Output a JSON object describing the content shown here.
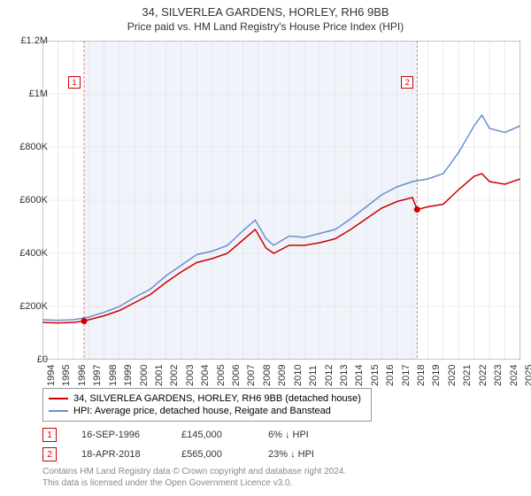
{
  "title": "34, SILVERLEA GARDENS, HORLEY, RH6 9BB",
  "subtitle": "Price paid vs. HM Land Registry's House Price Index (HPI)",
  "chart": {
    "type": "line",
    "background_color": "#ffffff",
    "plot_band_color": "#f0f4fa",
    "grid_color": "#dddddd",
    "axis_color": "#888888",
    "ylim": [
      0,
      1200000
    ],
    "ytick_step": 200000,
    "yticks": [
      "£0",
      "£200K",
      "£400K",
      "£600K",
      "£800K",
      "£1M",
      "£1.2M"
    ],
    "xlim": [
      1994,
      2025
    ],
    "xticks": [
      1994,
      1995,
      1996,
      1997,
      1998,
      1999,
      2000,
      2001,
      2002,
      2003,
      2004,
      2005,
      2006,
      2007,
      2008,
      2009,
      2010,
      2011,
      2012,
      2013,
      2014,
      2015,
      2016,
      2017,
      2018,
      2019,
      2020,
      2021,
      2022,
      2023,
      2024,
      2025
    ],
    "plot_band_start": 1996.7,
    "plot_band_end": 2018.3,
    "series": [
      {
        "name": "34, SILVERLEA GARDENS, HORLEY, RH6 9BB (detached house)",
        "color": "#cc0000",
        "line_width": 1.5,
        "data": [
          [
            1994,
            140000
          ],
          [
            1995,
            138000
          ],
          [
            1996,
            140000
          ],
          [
            1996.7,
            145000
          ],
          [
            1997,
            150000
          ],
          [
            1998,
            165000
          ],
          [
            1999,
            185000
          ],
          [
            2000,
            215000
          ],
          [
            2001,
            245000
          ],
          [
            2002,
            290000
          ],
          [
            2003,
            330000
          ],
          [
            2004,
            365000
          ],
          [
            2005,
            380000
          ],
          [
            2006,
            400000
          ],
          [
            2007,
            450000
          ],
          [
            2007.8,
            490000
          ],
          [
            2008.5,
            420000
          ],
          [
            2009,
            400000
          ],
          [
            2010,
            430000
          ],
          [
            2011,
            430000
          ],
          [
            2012,
            440000
          ],
          [
            2013,
            455000
          ],
          [
            2014,
            490000
          ],
          [
            2015,
            530000
          ],
          [
            2016,
            570000
          ],
          [
            2017,
            595000
          ],
          [
            2018,
            610000
          ],
          [
            2018.3,
            565000
          ],
          [
            2019,
            575000
          ],
          [
            2020,
            585000
          ],
          [
            2021,
            640000
          ],
          [
            2022,
            690000
          ],
          [
            2022.5,
            700000
          ],
          [
            2023,
            670000
          ],
          [
            2024,
            660000
          ],
          [
            2025,
            680000
          ]
        ]
      },
      {
        "name": "HPI: Average price, detached house, Reigate and Banstead",
        "color": "#6a8fd0",
        "line_width": 1.5,
        "data": [
          [
            1994,
            150000
          ],
          [
            1995,
            148000
          ],
          [
            1996,
            150000
          ],
          [
            1997,
            160000
          ],
          [
            1998,
            178000
          ],
          [
            1999,
            200000
          ],
          [
            2000,
            235000
          ],
          [
            2001,
            265000
          ],
          [
            2002,
            315000
          ],
          [
            2003,
            355000
          ],
          [
            2004,
            395000
          ],
          [
            2005,
            408000
          ],
          [
            2006,
            430000
          ],
          [
            2007,
            485000
          ],
          [
            2007.8,
            525000
          ],
          [
            2008.5,
            455000
          ],
          [
            2009,
            430000
          ],
          [
            2010,
            465000
          ],
          [
            2011,
            460000
          ],
          [
            2012,
            475000
          ],
          [
            2013,
            490000
          ],
          [
            2014,
            530000
          ],
          [
            2015,
            575000
          ],
          [
            2016,
            620000
          ],
          [
            2017,
            650000
          ],
          [
            2018,
            670000
          ],
          [
            2019,
            680000
          ],
          [
            2020,
            700000
          ],
          [
            2021,
            780000
          ],
          [
            2022,
            880000
          ],
          [
            2022.5,
            920000
          ],
          [
            2023,
            870000
          ],
          [
            2024,
            855000
          ],
          [
            2025,
            880000
          ]
        ]
      }
    ],
    "markers": [
      {
        "label": "1",
        "x": 1996.7,
        "y": 145000,
        "dot_color": "#cc0000"
      },
      {
        "label": "2",
        "x": 2018.3,
        "y": 565000,
        "dot_color": "#cc0000"
      }
    ]
  },
  "legend": {
    "items": [
      {
        "color": "#cc0000",
        "label": "34, SILVERLEA GARDENS, HORLEY, RH6 9BB (detached house)"
      },
      {
        "color": "#6a8fd0",
        "label": "HPI: Average price, detached house, Reigate and Banstead"
      }
    ]
  },
  "transactions": [
    {
      "marker": "1",
      "date": "16-SEP-1996",
      "price": "£145,000",
      "delta": "6% ↓ HPI"
    },
    {
      "marker": "2",
      "date": "18-APR-2018",
      "price": "£565,000",
      "delta": "23% ↓ HPI"
    }
  ],
  "footer": {
    "line1": "Contains HM Land Registry data © Crown copyright and database right 2024.",
    "line2": "This data is licensed under the Open Government Licence v3.0."
  }
}
